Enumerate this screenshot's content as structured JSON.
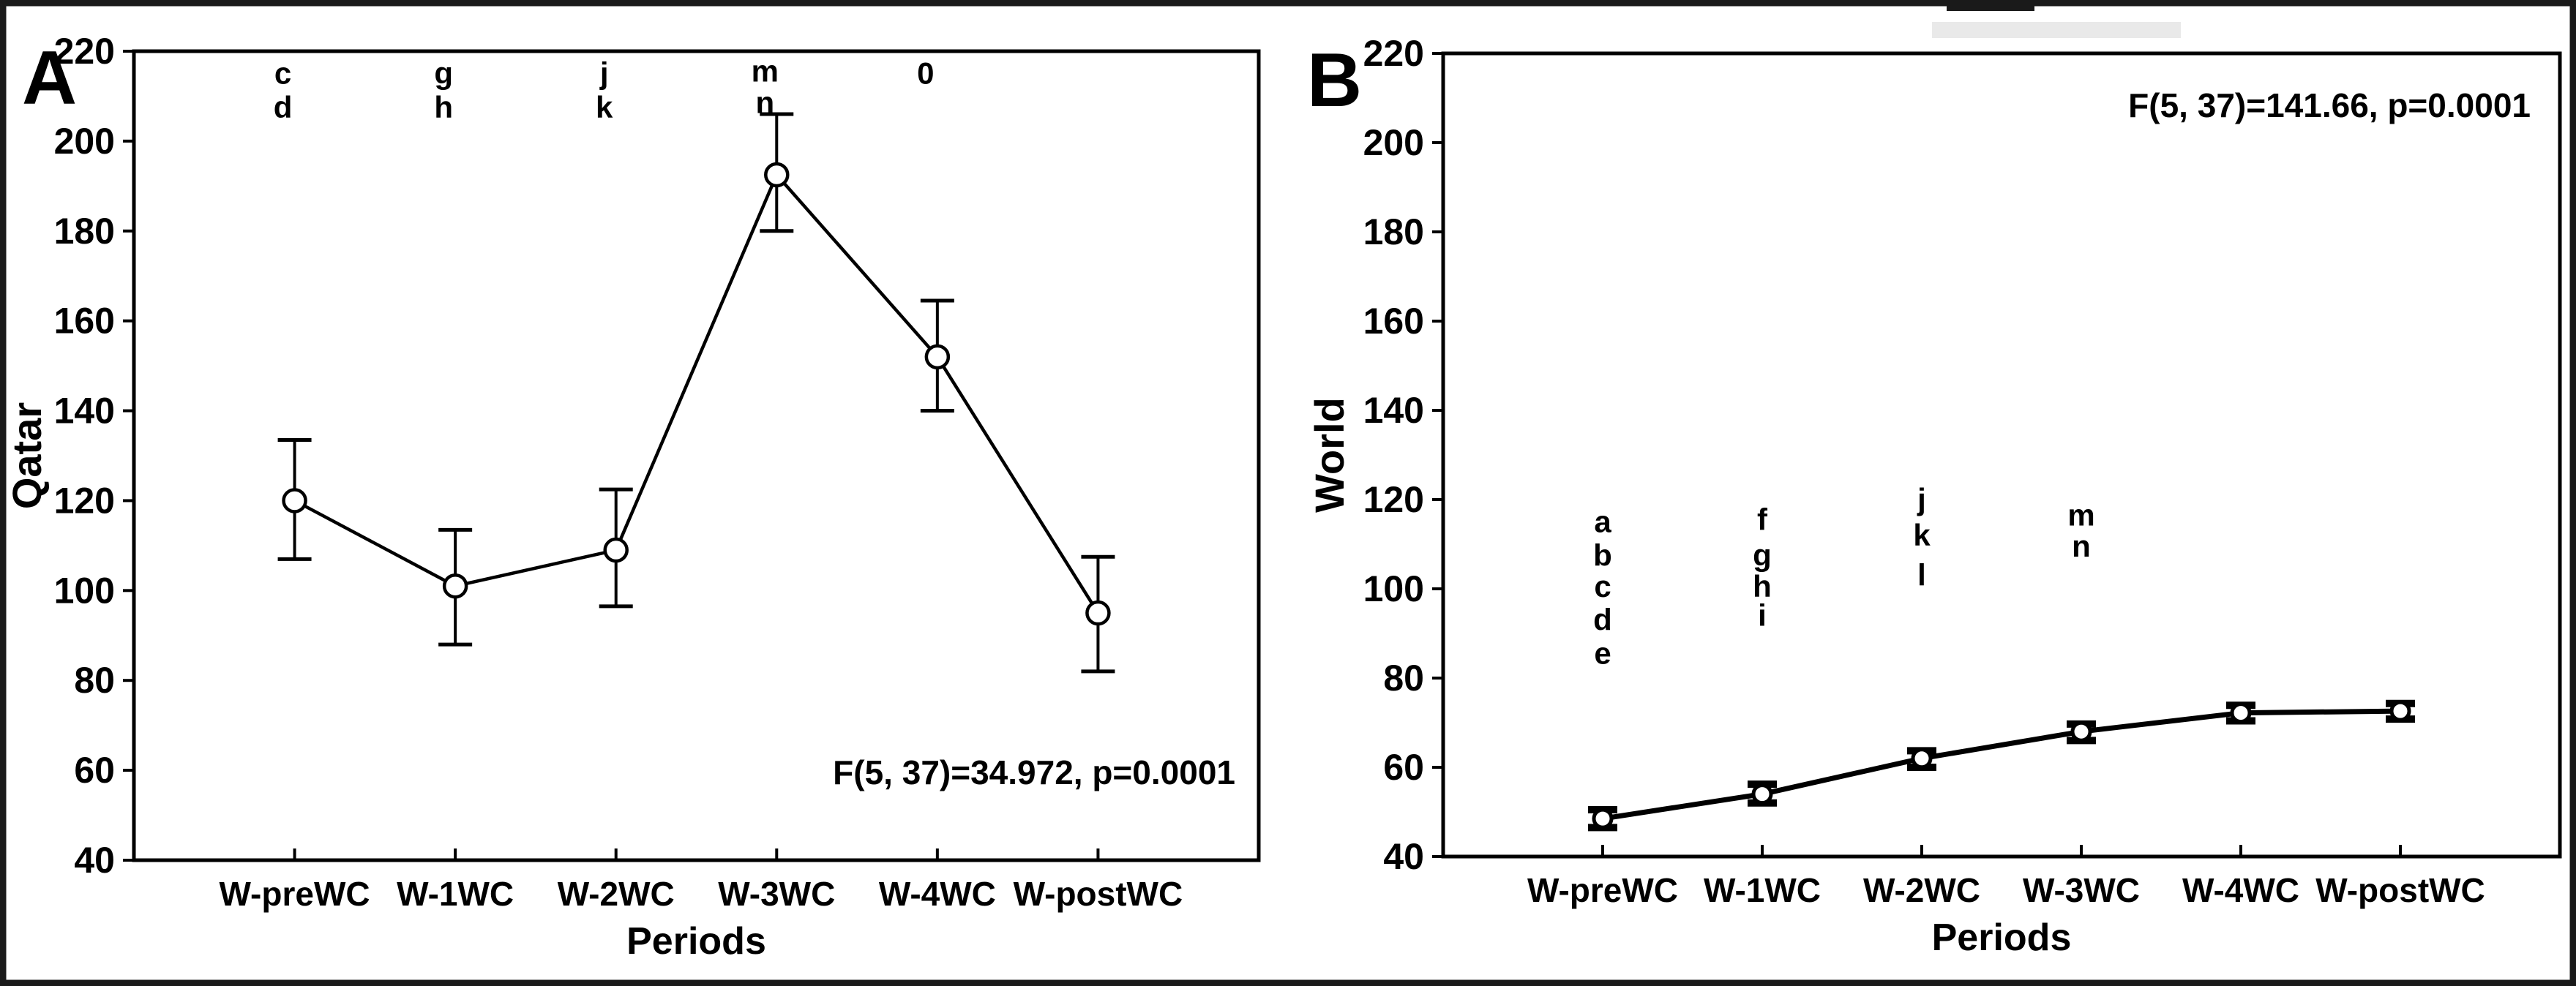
{
  "figure": {
    "background": "#ffffff",
    "border_color": "#1a1a1a",
    "ink_color": "#000000"
  },
  "chart_data": [
    {
      "type": "line",
      "panel_label": "A",
      "ylabel": "Qatar",
      "xlabel": "Periods",
      "annotation": "F(5, 37)=34.972, p=0.0001",
      "annotation_position": "bottom-right",
      "categories": [
        "W-preWC",
        "W-1WC",
        "W-2WC",
        "W-3WC",
        "W-4WC",
        "W-postWC"
      ],
      "ylim": [
        40,
        220
      ],
      "yticks": [
        220,
        200,
        180,
        160,
        140,
        120,
        100,
        80,
        60,
        40
      ],
      "grid": false,
      "legend": "none",
      "series": [
        {
          "name": "Qatar mean with error bars",
          "marker": "open-circle",
          "values": [
            120,
            101,
            109,
            192.5,
            152,
            95
          ],
          "ci_low": [
            107,
            88,
            96.5,
            180,
            140,
            82
          ],
          "ci_high": [
            133.5,
            113.5,
            122.5,
            206,
            164.5,
            107.5
          ]
        }
      ],
      "sig_letters": [
        {
          "category_index": 0,
          "letters": [
            "c",
            "d"
          ],
          "y_values": [
            215,
            207.5
          ]
        },
        {
          "category_index": 1,
          "letters": [
            "g",
            "h"
          ],
          "y_values": [
            215,
            207.5
          ]
        },
        {
          "category_index": 2,
          "letters": [
            "j",
            "k"
          ],
          "y_values": [
            215,
            207.5
          ]
        },
        {
          "category_index": 3,
          "letters": [
            "m",
            "n"
          ],
          "y_values": [
            215.5,
            208.5
          ]
        },
        {
          "category_index": 4,
          "letters": [
            "0"
          ],
          "y_values": [
            215
          ]
        }
      ]
    },
    {
      "type": "line",
      "panel_label": "B",
      "ylabel": "World",
      "xlabel": "Periods",
      "annotation": "F(5, 37)=141.66, p=0.0001",
      "annotation_position": "top-right",
      "categories": [
        "W-preWC",
        "W-1WC",
        "W-2WC",
        "W-3WC",
        "W-4WC",
        "W-postWC"
      ],
      "ylim": [
        40,
        220
      ],
      "yticks": [
        220,
        200,
        180,
        160,
        140,
        120,
        100,
        80,
        60,
        40
      ],
      "grid": false,
      "legend": "none",
      "series": [
        {
          "name": "World mean with error bars",
          "marker": "open-circle",
          "values": [
            48.5,
            54,
            62,
            68,
            72.2,
            72.6
          ],
          "ci_low": [
            46.5,
            52,
            60,
            66,
            70.4,
            70.8
          ],
          "ci_high": [
            50.5,
            56.2,
            63.7,
            69.7,
            73.9,
            74.3
          ]
        }
      ],
      "sig_letters": [
        {
          "category_index": 0,
          "letters": [
            "a",
            "b",
            "c",
            "d",
            "e"
          ],
          "y_values": [
            115,
            107.5,
            100.5,
            93,
            85.5
          ]
        },
        {
          "category_index": 1,
          "letters": [
            "f",
            "g",
            "h",
            "i"
          ],
          "y_values": [
            115.5,
            107.5,
            100.5,
            94
          ]
        },
        {
          "category_index": 2,
          "letters": [
            "j",
            "k",
            "l"
          ],
          "y_values": [
            120,
            112,
            103
          ]
        },
        {
          "category_index": 3,
          "letters": [
            "m",
            "n"
          ],
          "y_values": [
            116.5,
            109.5
          ]
        }
      ]
    }
  ]
}
